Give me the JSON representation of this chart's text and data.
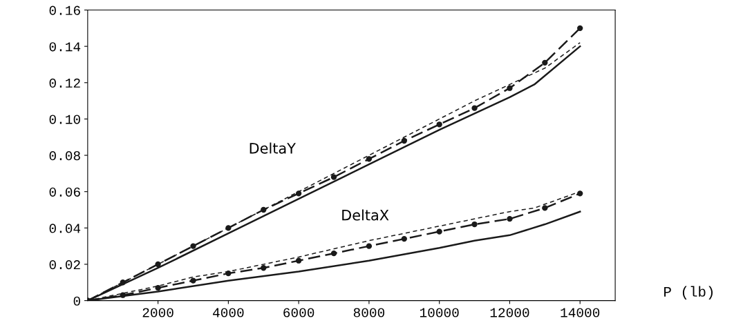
{
  "chart_data": {
    "type": "line",
    "xlabel": "P (lb)",
    "xlim": [
      0,
      15000
    ],
    "ylim": [
      0,
      0.16
    ],
    "xticks": [
      2000,
      4000,
      6000,
      8000,
      10000,
      12000,
      14000
    ],
    "yticks": [
      {
        "value": 0,
        "label": "0"
      },
      {
        "value": 0.02,
        "label": "0.02"
      },
      {
        "value": 0.04,
        "label": "0.04"
      },
      {
        "value": 0.06,
        "label": "0.06"
      },
      {
        "value": 0.08,
        "label": "0.08"
      },
      {
        "value": 0.1,
        "label": "0.10"
      },
      {
        "value": 0.12,
        "label": "0.12"
      },
      {
        "value": 0.14,
        "label": "0.14"
      },
      {
        "value": 0.16,
        "label": "0.16"
      }
    ],
    "grid": false,
    "series": [
      {
        "color": "#1a1a1a",
        "line_style": "solid",
        "marker": "none",
        "x": [
          0,
          2000,
          4000,
          6000,
          8000,
          10000,
          12000,
          12700,
          14000
        ],
        "values": [
          0,
          0.018,
          0.037,
          0.056,
          0.075,
          0.094,
          0.112,
          0.119,
          0.14
        ]
      },
      {
        "color": "#1a1a1a",
        "line_style": "dashed",
        "marker": "circle",
        "x": [
          0,
          1000,
          2000,
          3000,
          4000,
          5000,
          6000,
          7000,
          8000,
          9000,
          10000,
          11000,
          12000,
          13000,
          14000
        ],
        "values": [
          0,
          0.01,
          0.02,
          0.03,
          0.04,
          0.05,
          0.059,
          0.068,
          0.078,
          0.088,
          0.097,
          0.106,
          0.117,
          0.131,
          0.15
        ]
      },
      {
        "color": "#1a1a1a",
        "line_style": "dotted",
        "marker": "none",
        "x": [
          0,
          2000,
          4000,
          6000,
          8000,
          9000,
          10000,
          11000,
          12000,
          13000,
          14000
        ],
        "values": [
          0,
          0.02,
          0.04,
          0.06,
          0.08,
          0.09,
          0.1,
          0.11,
          0.119,
          0.128,
          0.142
        ]
      },
      {
        "color": "#1a1a1a",
        "line_style": "solid",
        "marker": "none",
        "x": [
          0,
          2000,
          4000,
          6000,
          8000,
          10000,
          11000,
          12000,
          13000,
          14000
        ],
        "values": [
          0,
          0.005,
          0.011,
          0.016,
          0.022,
          0.029,
          0.033,
          0.036,
          0.042,
          0.049
        ]
      },
      {
        "color": "#1a1a1a",
        "line_style": "dashed",
        "marker": "circle",
        "x": [
          0,
          1000,
          2000,
          3000,
          4000,
          5000,
          6000,
          7000,
          8000,
          9000,
          10000,
          11000,
          12000,
          13000,
          14000
        ],
        "values": [
          0,
          0.003,
          0.007,
          0.011,
          0.015,
          0.018,
          0.022,
          0.026,
          0.03,
          0.034,
          0.038,
          0.042,
          0.045,
          0.051,
          0.059
        ]
      },
      {
        "color": "#1a1a1a",
        "line_style": "dotted",
        "marker": "none",
        "x": [
          0,
          2000,
          3000,
          4000,
          6000,
          8000,
          10000,
          12000,
          12700,
          14000
        ],
        "values": [
          0,
          0.008,
          0.013,
          0.016,
          0.024,
          0.033,
          0.041,
          0.049,
          0.051,
          0.06
        ]
      }
    ],
    "annotations": [
      "DeltaY",
      "DeltaX"
    ]
  }
}
